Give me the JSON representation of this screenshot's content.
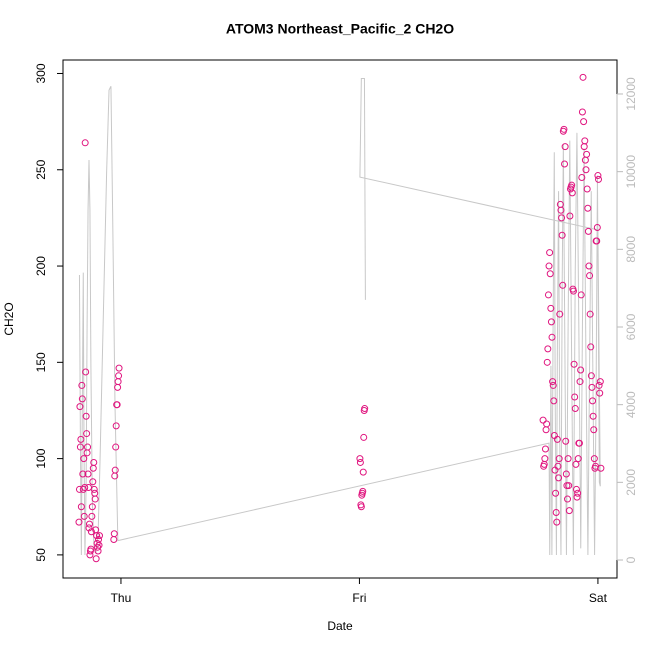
{
  "chart_data": {
    "type": "scatter",
    "title": "ATOM3 Northeast_Pacific_2 CH2O",
    "x_label": "Date",
    "y_label": "CH2O",
    "xlim": [
      -0.243,
      2.08
    ],
    "xticks": [
      {
        "value": 0,
        "label": "Thu"
      },
      {
        "value": 1,
        "label": "Fri"
      },
      {
        "value": 2,
        "label": "Sat"
      }
    ],
    "ylim": [
      38,
      307
    ],
    "yticks": [
      50,
      100,
      150,
      200,
      250,
      300
    ],
    "y2lim": [
      -463,
      12875
    ],
    "y2ticks": [
      0,
      2000,
      4000,
      6000,
      8000,
      10000,
      12000
    ],
    "series": [
      {
        "type": "scatter",
        "color": "#e0157f",
        "x": [
          -0.176,
          -0.174,
          -0.172,
          -0.17,
          -0.168,
          -0.166,
          -0.164,
          -0.162,
          -0.16,
          -0.158,
          -0.156,
          -0.154,
          -0.152,
          -0.15,
          -0.148,
          -0.146,
          -0.144,
          -0.142,
          -0.14,
          -0.138,
          -0.136,
          -0.134,
          -0.132,
          -0.13,
          -0.128,
          -0.126,
          -0.124,
          -0.122,
          -0.12,
          -0.118,
          -0.116,
          -0.114,
          -0.112,
          -0.11,
          -0.108,
          -0.106,
          -0.104,
          -0.102,
          -0.1,
          -0.098,
          -0.096,
          -0.094,
          -0.092,
          -0.09,
          -0.03,
          -0.028,
          -0.026,
          -0.024,
          -0.022,
          -0.02,
          -0.018,
          -0.016,
          -0.014,
          -0.012,
          -0.01,
          -0.008,
          1.002,
          1.004,
          1.006,
          1.008,
          1.01,
          1.012,
          1.014,
          1.016,
          1.018,
          1.02,
          1.022,
          1.77,
          1.7725,
          1.775,
          1.7775,
          1.78,
          1.7825,
          1.785,
          1.7875,
          1.79,
          1.7925,
          1.795,
          1.7975,
          1.8,
          1.8025,
          1.805,
          1.8075,
          1.81,
          1.8125,
          1.815,
          1.8175,
          1.82,
          1.8225,
          1.825,
          1.8275,
          1.83,
          1.8325,
          1.835,
          1.8375,
          1.84,
          1.8425,
          1.845,
          1.8475,
          1.85,
          1.8525,
          1.855,
          1.8575,
          1.86,
          1.8625,
          1.865,
          1.8675,
          1.87,
          1.8725,
          1.875,
          1.8775,
          1.88,
          1.8825,
          1.885,
          1.8875,
          1.89,
          1.8925,
          1.895,
          1.8975,
          1.9,
          1.9025,
          1.905,
          1.9075,
          1.91,
          1.9125,
          1.915,
          1.9175,
          1.92,
          1.9225,
          1.925,
          1.9275,
          1.93,
          1.9325,
          1.935,
          1.9375,
          1.94,
          1.9425,
          1.945,
          1.9475,
          1.95,
          1.9525,
          1.955,
          1.9575,
          1.96,
          1.9625,
          1.965,
          1.9675,
          1.97,
          1.9725,
          1.975,
          1.9775,
          1.98,
          1.9825,
          1.985,
          1.9875,
          1.99,
          1.9925,
          1.995,
          1.9975,
          2.0,
          2.0025,
          2.005,
          2.0075,
          2.01,
          2.0125
        ],
        "values": [
          67,
          84,
          127,
          106,
          110,
          75,
          138,
          131,
          92,
          84,
          100,
          70,
          85,
          264,
          145,
          122,
          113,
          103,
          106,
          92,
          85,
          64,
          66,
          50,
          52,
          53,
          62,
          70,
          75,
          88,
          95,
          98,
          84,
          82,
          79,
          63,
          48,
          60,
          56,
          54,
          52,
          58,
          55,
          60,
          58,
          61,
          91,
          94,
          106,
          117,
          128,
          128,
          137,
          140,
          143,
          147,
          100,
          98,
          76,
          75,
          81,
          82,
          83,
          93,
          111,
          125,
          126,
          120,
          96,
          97,
          100,
          105,
          115,
          118,
          150,
          157,
          185,
          200,
          207,
          196,
          178,
          171,
          163,
          140,
          138,
          130,
          112,
          94,
          82,
          72,
          67,
          110,
          96,
          90,
          100,
          175,
          232,
          229,
          225,
          216,
          190,
          270,
          271,
          253,
          262,
          109,
          92,
          86,
          79,
          100,
          86,
          73,
          226,
          240,
          241,
          242,
          238,
          188,
          187,
          149,
          132,
          126,
          97,
          84,
          80,
          82,
          100,
          108,
          108,
          140,
          146,
          185,
          246,
          280,
          298,
          275,
          262,
          265,
          255,
          250,
          258,
          240,
          230,
          218,
          200,
          195,
          175,
          158,
          143,
          137,
          130,
          122,
          115,
          100,
          95,
          96,
          213,
          213,
          220,
          247,
          245,
          138,
          134,
          140,
          95
        ]
      },
      {
        "type": "line",
        "axis": "y2",
        "color": "#c8c8c8",
        "x": [
          -0.174,
          -0.17,
          -0.166,
          -0.162,
          -0.158,
          -0.155,
          -0.151,
          -0.146,
          -0.142,
          -0.138,
          -0.134,
          -0.13,
          -0.126,
          -0.12,
          -0.113,
          -0.105,
          -0.096,
          -0.088,
          -0.075,
          -0.06,
          -0.05,
          -0.042,
          -0.035,
          -0.025,
          -0.013,
          1.795,
          1.798,
          1.803,
          1.807,
          1.812,
          1.817,
          1.821,
          1.826,
          1.83,
          1.835,
          1.84,
          1.845,
          1.85,
          1.855,
          1.862,
          1.868,
          1.875,
          1.882,
          1.89,
          1.897,
          1.905,
          1.912,
          1.92,
          1.928,
          1.935,
          1.942,
          1.95,
          1.958,
          1.965,
          1.972,
          1.98,
          1.986,
          1.992,
          1.998,
          2.002,
          2.006,
          2.01,
          2.0,
          1.002,
          1.008,
          1.021,
          1.025
        ],
        "values": [
          7340,
          3000,
          130,
          4000,
          7400,
          3000,
          130,
          2000,
          6000,
          9000,
          10300,
          9000,
          5000,
          1500,
          300,
          200,
          600,
          2500,
          6000,
          10000,
          12100,
          12200,
          9000,
          4000,
          500,
          3010,
          130,
          5000,
          130,
          6000,
          10500,
          4000,
          130,
          5500,
          9500,
          3000,
          130,
          7000,
          10700,
          5000,
          130,
          6000,
          10800,
          5000,
          130,
          7500,
          11000,
          6000,
          300,
          6000,
          10600,
          5000,
          130,
          5000,
          9500,
          4000,
          130,
          4000,
          9900,
          6000,
          2000,
          1900,
          8500,
          9860,
          12400,
          12400,
          6700
        ]
      }
    ]
  }
}
